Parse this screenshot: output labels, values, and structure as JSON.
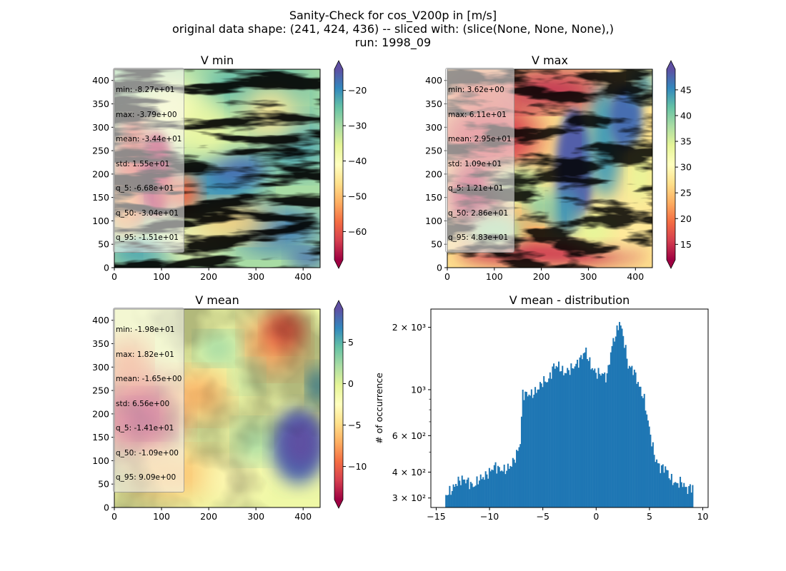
{
  "suptitle": [
    "Sanity-Check for cos_V200p in [m/s]",
    "original data shape: (241, 424, 436) -- sliced with: (slice(None, None, None),)",
    "run: 1998_09"
  ],
  "colormap": [
    "#9e0142",
    "#d53e4f",
    "#f46d43",
    "#fdae61",
    "#fee08b",
    "#ffffbf",
    "#e6f598",
    "#abdda4",
    "#66c2a5",
    "#3288bd",
    "#5e4fa2"
  ],
  "panels": [
    {
      "title": "V min",
      "x_ticks": [
        0,
        100,
        200,
        300,
        400
      ],
      "y_ticks": [
        0,
        50,
        100,
        150,
        200,
        250,
        300,
        350,
        400
      ],
      "xlim": [
        0,
        436
      ],
      "ylim": [
        0,
        424
      ],
      "colorbar": {
        "vmin": -68,
        "vmax": -14,
        "ticks": [
          -60,
          -50,
          -40,
          -30,
          -20
        ],
        "tick_labels": [
          "−60",
          "−50",
          "−40",
          "−30",
          "−20"
        ]
      },
      "stats": [
        "min: -8.27e+01",
        "max: -3.79e+00",
        "mean: -3.44e+01",
        "std: 1.55e+01",
        "q_5: -6.68e+01",
        "q_50: -3.04e+01",
        "q_95: -1.51e+01"
      ]
    },
    {
      "title": "V max",
      "x_ticks": [
        0,
        100,
        200,
        300,
        400
      ],
      "y_ticks": [
        0,
        50,
        100,
        150,
        200,
        250,
        300,
        350,
        400
      ],
      "xlim": [
        0,
        436
      ],
      "ylim": [
        0,
        424
      ],
      "colorbar": {
        "vmin": 12,
        "vmax": 49,
        "ticks": [
          15,
          20,
          25,
          30,
          35,
          40,
          45
        ],
        "tick_labels": [
          "15",
          "20",
          "25",
          "30",
          "35",
          "40",
          "45"
        ]
      },
      "stats": [
        "min: 3.62e+00",
        "max: 6.11e+01",
        "mean: 2.95e+01",
        "std: 1.09e+01",
        "q_5: 1.21e+01",
        "q_50: 2.86e+01",
        "q_95: 4.83e+01"
      ]
    },
    {
      "title": "V mean",
      "x_ticks": [
        0,
        100,
        200,
        300,
        400
      ],
      "y_ticks": [
        0,
        50,
        100,
        150,
        200,
        250,
        300,
        350,
        400
      ],
      "xlim": [
        0,
        436
      ],
      "ylim": [
        0,
        424
      ],
      "colorbar": {
        "vmin": -14,
        "vmax": 9,
        "ticks": [
          -10,
          -5,
          0,
          5
        ],
        "tick_labels": [
          "−10",
          "−5",
          "0",
          "5"
        ]
      },
      "stats": [
        "min: -1.98e+01",
        "max: 1.82e+01",
        "mean: -1.65e+00",
        "std: 6.56e+00",
        "q_5: -1.41e+01",
        "q_50: -1.09e+00",
        "q_95: 9.09e+00"
      ]
    }
  ],
  "chart_data": {
    "type": "bar",
    "title": "V mean - distribution",
    "xlabel": "",
    "ylabel": "# of occurrence",
    "yscale": "log",
    "bar_color": "#1f77b4",
    "xlim": [
      -15.5,
      10.5
    ],
    "ylim": [
      270,
      2450
    ],
    "x_ticks": [
      -15,
      -10,
      -5,
      0,
      5,
      10
    ],
    "x_tick_labels": [
      "−15",
      "−10",
      "−5",
      "0",
      "5",
      "10"
    ],
    "y_major_ticks": [
      300,
      400,
      600,
      1000,
      2000
    ],
    "y_tick_labels": [
      "3 × 10²",
      "4 × 10²",
      "6 × 10²",
      "10³",
      "2 × 10³"
    ],
    "y_minor_ticks": [
      500,
      700,
      800,
      900
    ],
    "bin_anchors_x": [
      -14.1,
      -13.5,
      -13,
      -12.5,
      -12,
      -11.5,
      -11,
      -10.5,
      -10,
      -9.5,
      -9,
      -8.5,
      -8,
      -7.5,
      -7.1,
      -6.9,
      -6.5,
      -6,
      -5.5,
      -5,
      -4.5,
      -4,
      -3.5,
      -3,
      -2.5,
      -2,
      -1.5,
      -1,
      -0.5,
      0,
      0.5,
      1,
      1.5,
      2,
      2.2,
      2.6,
      3,
      3.5,
      4,
      4.5,
      5,
      5.5,
      6,
      6.5,
      7,
      7.5,
      8,
      8.5,
      9
    ],
    "bin_anchors_y": [
      310,
      330,
      360,
      370,
      360,
      340,
      370,
      380,
      400,
      430,
      410,
      410,
      430,
      480,
      560,
      960,
      950,
      950,
      1000,
      1100,
      1100,
      1300,
      1300,
      1200,
      1250,
      1300,
      1400,
      1550,
      1300,
      1200,
      1200,
      1150,
      1650,
      1950,
      2150,
      1750,
      1300,
      1250,
      1050,
      900,
      640,
      470,
      420,
      420,
      370,
      350,
      360,
      330,
      340
    ]
  }
}
